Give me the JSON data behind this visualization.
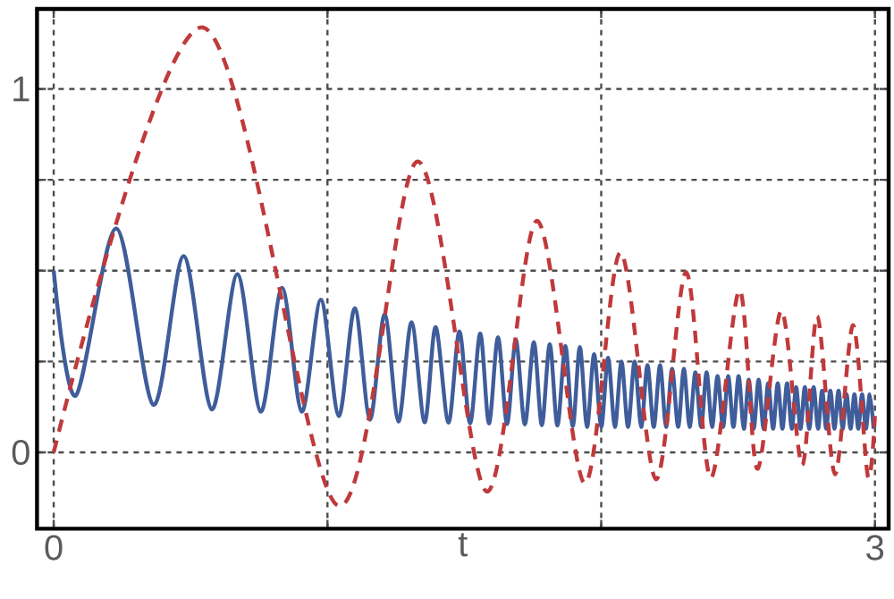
{
  "chart_data": {
    "type": "line",
    "xlabel": "t",
    "xlim": [
      -0.061,
      3.05
    ],
    "ylim": [
      -0.21,
      1.22
    ],
    "xticks": [
      0,
      {
        "value": 1,
        "label": null
      },
      {
        "value": 2,
        "label": null
      },
      3
    ],
    "yticks": [
      0,
      {
        "value": 0.25,
        "label": null
      },
      {
        "value": 0.5,
        "label": null
      },
      {
        "value": 0.75,
        "label": null
      },
      1
    ],
    "grid": true,
    "marker": "none",
    "series": [
      {
        "color": "#3f5d9a",
        "line_style": "solid",
        "x": [
          0,
          0.08,
          0.229,
          0.364,
          0.475,
          0.577,
          0.671,
          0.756,
          0.834,
          0.906,
          0.976,
          1.041,
          1.1,
          1.155,
          1.209,
          1.259,
          1.307,
          1.355,
          1.395,
          1.442,
          1.482,
          1.521,
          1.558,
          1.59,
          1.623,
          1.656,
          1.688,
          1.721,
          1.754,
          1.783,
          1.812,
          1.84,
          1.869,
          1.896,
          1.922,
          1.948,
          1.974,
          2.0,
          2.025,
          2.05,
          2.074,
          2.098,
          2.122,
          2.146,
          2.169,
          2.192,
          2.215,
          2.237,
          2.259,
          2.281,
          2.302,
          2.323,
          2.344,
          2.365,
          2.385,
          2.405,
          2.425,
          2.445,
          2.464,
          2.483,
          2.502,
          2.521,
          2.539,
          2.557,
          2.575,
          2.593,
          2.61,
          2.628,
          2.645,
          2.662,
          2.679,
          2.696,
          2.712,
          2.728,
          2.744,
          2.76,
          2.776,
          2.792,
          2.807,
          2.822,
          2.837,
          2.852,
          2.867,
          2.882,
          2.896,
          2.911,
          2.925,
          2.939,
          2.953,
          2.967,
          2.981,
          2.995
        ],
        "values": [
          0.5,
          0.156,
          0.616,
          0.131,
          0.54,
          0.118,
          0.49,
          0.112,
          0.453,
          0.112,
          0.42,
          0.1,
          0.397,
          0.09,
          0.38,
          0.085,
          0.358,
          0.083,
          0.345,
          0.082,
          0.333,
          0.08,
          0.327,
          0.08,
          0.317,
          0.078,
          0.31,
          0.077,
          0.303,
          0.075,
          0.298,
          0.074,
          0.293,
          0.072,
          0.29,
          0.07,
          0.27,
          0.07,
          0.26,
          0.07,
          0.25,
          0.07,
          0.25,
          0.07,
          0.24,
          0.07,
          0.24,
          0.07,
          0.23,
          0.07,
          0.23,
          0.07,
          0.22,
          0.07,
          0.22,
          0.07,
          0.21,
          0.07,
          0.21,
          0.07,
          0.21,
          0.065,
          0.2,
          0.065,
          0.2,
          0.065,
          0.19,
          0.065,
          0.19,
          0.065,
          0.19,
          0.065,
          0.18,
          0.065,
          0.18,
          0.065,
          0.18,
          0.065,
          0.17,
          0.065,
          0.17,
          0.065,
          0.17,
          0.065,
          0.16,
          0.065,
          0.16,
          0.065,
          0.16,
          0.065,
          0.16,
          0.065
        ]
      },
      {
        "color": "#c0393b",
        "line_style": "dashed",
        "x": [
          0,
          0.545,
          1.035,
          1.329,
          1.58,
          1.765,
          1.939,
          2.07,
          2.2,
          2.31,
          2.4,
          2.505,
          2.57,
          2.658,
          2.734,
          2.789,
          2.854,
          2.92,
          2.974,
          3.0
        ],
        "values": [
          0,
          1.169,
          -0.145,
          0.8,
          -0.107,
          0.637,
          -0.085,
          0.55,
          -0.074,
          0.496,
          -0.07,
          0.446,
          -0.045,
          0.39,
          -0.035,
          0.375,
          -0.06,
          0.35,
          -0.065,
          0.1
        ]
      }
    ]
  }
}
